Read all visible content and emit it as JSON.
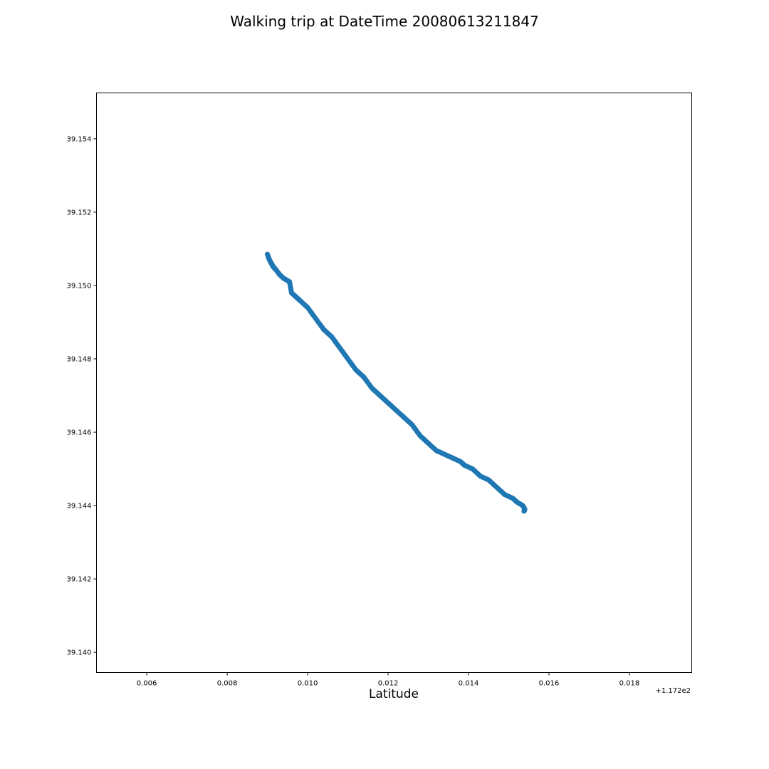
{
  "figure": {
    "title": "Walking trip at DateTime 20080613211847"
  },
  "chart_data": {
    "type": "scatter",
    "title": "Walking trip at DateTime 20080613211847",
    "xlabel": "Latitude",
    "ylabel": "",
    "x_offset_label": "+1.172e2",
    "xlim": [
      0.00475,
      0.01955
    ],
    "ylim": [
      39.13945,
      39.15525
    ],
    "xticks": [
      0.006,
      0.008,
      0.01,
      0.012,
      0.014,
      0.016,
      0.018
    ],
    "xtick_labels": [
      "0.006",
      "0.008",
      "0.010",
      "0.012",
      "0.014",
      "0.016",
      "0.018"
    ],
    "yticks": [
      39.14,
      39.142,
      39.144,
      39.146,
      39.148,
      39.15,
      39.152,
      39.154
    ],
    "ytick_labels": [
      "39.140",
      "39.142",
      "39.144",
      "39.146",
      "39.148",
      "39.150",
      "39.152",
      "39.154"
    ],
    "grid": false,
    "marker_color": "#1f77b4",
    "series": [
      {
        "x": [
          0.009,
          0.00905,
          0.0091,
          0.00915,
          0.0092,
          0.0093,
          0.0094,
          0.00955,
          0.0096,
          0.0097,
          0.0098,
          0.01,
          0.0102,
          0.0104,
          0.0106,
          0.0108,
          0.011,
          0.0112,
          0.0114,
          0.0116,
          0.0118,
          0.012,
          0.0122,
          0.0124,
          0.0126,
          0.0128,
          0.013,
          0.0132,
          0.0134,
          0.0136,
          0.0138,
          0.0139,
          0.0141,
          0.0143,
          0.0145,
          0.0147,
          0.0149,
          0.0151,
          0.0152,
          0.01535,
          0.0154,
          0.01538
        ],
        "y": [
          39.15085,
          39.1507,
          39.1506,
          39.1505,
          39.15045,
          39.1503,
          39.1502,
          39.1501,
          39.1498,
          39.1497,
          39.1496,
          39.1494,
          39.1491,
          39.1488,
          39.1486,
          39.1483,
          39.148,
          39.1477,
          39.1475,
          39.1472,
          39.147,
          39.1468,
          39.1466,
          39.1464,
          39.1462,
          39.1459,
          39.1457,
          39.1455,
          39.1454,
          39.1453,
          39.1452,
          39.1451,
          39.145,
          39.1448,
          39.1447,
          39.1445,
          39.1443,
          39.1442,
          39.1441,
          39.144,
          39.1439,
          39.14385
        ]
      }
    ]
  }
}
